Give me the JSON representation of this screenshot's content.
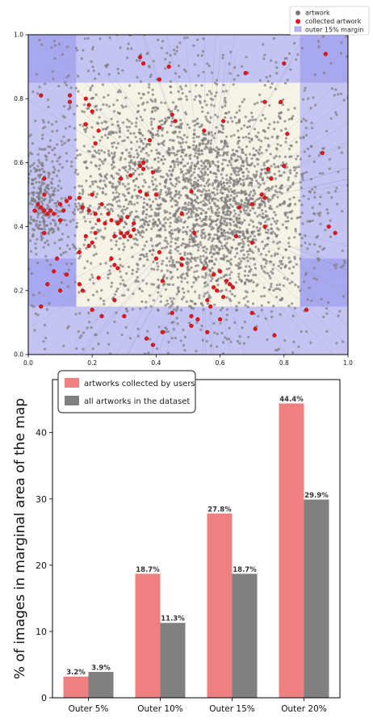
{
  "chart_data": [
    {
      "type": "scatter",
      "title": "",
      "xlabel": "",
      "ylabel": "",
      "xlim": [
        0.0,
        1.0
      ],
      "ylim": [
        0.0,
        1.0
      ],
      "x_ticks": [
        "0.0",
        "0.2",
        "0.4",
        "0.6",
        "0.8",
        "1.0"
      ],
      "y_ticks": [
        "0.0",
        "0.2",
        "0.4",
        "0.6",
        "0.8",
        "1.0"
      ],
      "grid": false,
      "legend_position": "top-right",
      "legend": [
        "artwork",
        "collected artwork",
        "outer 15% margin"
      ],
      "margin": 0.15,
      "colors": {
        "artwork": "#7a7a7a",
        "collected": "#e8141c",
        "margin": "#8c8cf0",
        "inner": "#f7f2e6"
      },
      "series": [
        {
          "name": "collected artwork",
          "points": [
            [
              0.93,
              0.94
            ],
            [
              0.8,
              0.91
            ],
            [
              0.68,
              0.88
            ],
            [
              0.44,
              0.9
            ],
            [
              0.36,
              0.91
            ],
            [
              0.35,
              0.93
            ],
            [
              0.41,
              0.86
            ],
            [
              0.04,
              0.81
            ],
            [
              0.13,
              0.81
            ],
            [
              0.13,
              0.79
            ],
            [
              0.18,
              0.8
            ],
            [
              0.19,
              0.78
            ],
            [
              0.2,
              0.76
            ],
            [
              0.18,
              0.72
            ],
            [
              0.22,
              0.7
            ],
            [
              0.21,
              0.66
            ],
            [
              0.45,
              0.75
            ],
            [
              0.46,
              0.73
            ],
            [
              0.41,
              0.71
            ],
            [
              0.38,
              0.67
            ],
            [
              0.36,
              0.6
            ],
            [
              0.36,
              0.58
            ],
            [
              0.35,
              0.59
            ],
            [
              0.39,
              0.57
            ],
            [
              0.32,
              0.56
            ],
            [
              0.29,
              0.55
            ],
            [
              0.35,
              0.51
            ],
            [
              0.37,
              0.5
            ],
            [
              0.4,
              0.5
            ],
            [
              0.75,
              0.58
            ],
            [
              0.76,
              0.55
            ],
            [
              0.73,
              0.5
            ],
            [
              0.74,
              0.49
            ],
            [
              0.7,
              0.47
            ],
            [
              0.66,
              0.46
            ],
            [
              0.74,
              0.4
            ],
            [
              0.7,
              0.35
            ],
            [
              0.65,
              0.37
            ],
            [
              0.8,
              0.59
            ],
            [
              0.81,
              0.69
            ],
            [
              0.79,
              0.79
            ],
            [
              0.74,
              0.79
            ],
            [
              0.61,
              0.73
            ],
            [
              0.55,
              0.7
            ],
            [
              0.92,
              0.63
            ],
            [
              0.96,
              0.38
            ],
            [
              0.94,
              0.4
            ],
            [
              0.05,
              0.5
            ],
            [
              0.03,
              0.47
            ],
            [
              0.04,
              0.46
            ],
            [
              0.05,
              0.45
            ],
            [
              0.06,
              0.44
            ],
            [
              0.07,
              0.45
            ],
            [
              0.08,
              0.44
            ],
            [
              0.1,
              0.47
            ],
            [
              0.11,
              0.45
            ],
            [
              0.1,
              0.42
            ],
            [
              0.12,
              0.48
            ],
            [
              0.13,
              0.49
            ],
            [
              0.16,
              0.49
            ],
            [
              0.17,
              0.46
            ],
            [
              0.19,
              0.45
            ],
            [
              0.21,
              0.44
            ],
            [
              0.22,
              0.42
            ],
            [
              0.24,
              0.41
            ],
            [
              0.25,
              0.44
            ],
            [
              0.26,
              0.42
            ],
            [
              0.28,
              0.41
            ],
            [
              0.29,
              0.42
            ],
            [
              0.31,
              0.43
            ],
            [
              0.33,
              0.41
            ],
            [
              0.23,
              0.47
            ],
            [
              0.2,
              0.5
            ],
            [
              0.21,
              0.38
            ],
            [
              0.27,
              0.37
            ],
            [
              0.29,
              0.38
            ],
            [
              0.3,
              0.37
            ],
            [
              0.31,
              0.38
            ],
            [
              0.32,
              0.37
            ],
            [
              0.33,
              0.39
            ],
            [
              0.18,
              0.37
            ],
            [
              0.19,
              0.34
            ],
            [
              0.2,
              0.35
            ],
            [
              0.16,
              0.32
            ],
            [
              0.26,
              0.3
            ],
            [
              0.27,
              0.28
            ],
            [
              0.28,
              0.27
            ],
            [
              0.22,
              0.24
            ],
            [
              0.16,
              0.22
            ],
            [
              0.17,
              0.2
            ],
            [
              0.09,
              0.3
            ],
            [
              0.08,
              0.26
            ],
            [
              0.12,
              0.25
            ],
            [
              0.05,
              0.38
            ],
            [
              0.06,
              0.22
            ],
            [
              0.1,
              0.2
            ],
            [
              0.04,
              0.15
            ],
            [
              0.2,
              0.14
            ],
            [
              0.23,
              0.12
            ],
            [
              0.27,
              0.17
            ],
            [
              0.4,
              0.3
            ],
            [
              0.41,
              0.32
            ],
            [
              0.42,
              0.23
            ],
            [
              0.42,
              0.07
            ],
            [
              0.39,
              0.03
            ],
            [
              0.37,
              0.05
            ],
            [
              0.3,
              0.12
            ],
            [
              0.45,
              0.13
            ],
            [
              0.48,
              0.3
            ],
            [
              0.48,
              0.28
            ],
            [
              0.52,
              0.38
            ],
            [
              0.48,
              0.44
            ],
            [
              0.51,
              0.51
            ],
            [
              0.55,
              0.27
            ],
            [
              0.58,
              0.25
            ],
            [
              0.58,
              0.21
            ],
            [
              0.59,
              0.2
            ],
            [
              0.6,
              0.26
            ],
            [
              0.61,
              0.18
            ],
            [
              0.62,
              0.23
            ],
            [
              0.63,
              0.22
            ],
            [
              0.64,
              0.21
            ],
            [
              0.56,
              0.17
            ],
            [
              0.57,
              0.15
            ],
            [
              0.56,
              0.07
            ],
            [
              0.53,
              0.11
            ],
            [
              0.51,
              0.12
            ],
            [
              0.51,
              0.09
            ],
            [
              0.6,
              0.11
            ],
            [
              0.7,
              0.13
            ],
            [
              0.71,
              0.08
            ],
            [
              0.77,
              0.06
            ],
            [
              0.87,
              0.14
            ],
            [
              0.02,
              0.45
            ],
            [
              0.05,
              0.55
            ]
          ]
        },
        {
          "name": "artwork",
          "points": []
        }
      ]
    },
    {
      "type": "bar",
      "title": "",
      "xlabel": "",
      "ylabel": "% of images in marginal area of the map",
      "categories": [
        "Outer 5%",
        "Outer 10%",
        "Outer 15%",
        "Outer 20%"
      ],
      "ylim": [
        0,
        48
      ],
      "y_ticks": [
        "0",
        "10",
        "20",
        "30",
        "40"
      ],
      "grid": false,
      "legend_position": "top-left",
      "series": [
        {
          "name": "artworks collected by users",
          "color": "#f08080",
          "values": [
            3.2,
            18.7,
            27.8,
            44.4
          ],
          "labels": [
            "3.2%",
            "18.7%",
            "27.8%",
            "44.4%"
          ]
        },
        {
          "name": "all artworks in the dataset",
          "color": "#808080",
          "values": [
            3.9,
            11.3,
            18.7,
            29.9
          ],
          "labels": [
            "3.9%",
            "11.3%",
            "18.7%",
            "29.9%"
          ]
        }
      ]
    }
  ]
}
